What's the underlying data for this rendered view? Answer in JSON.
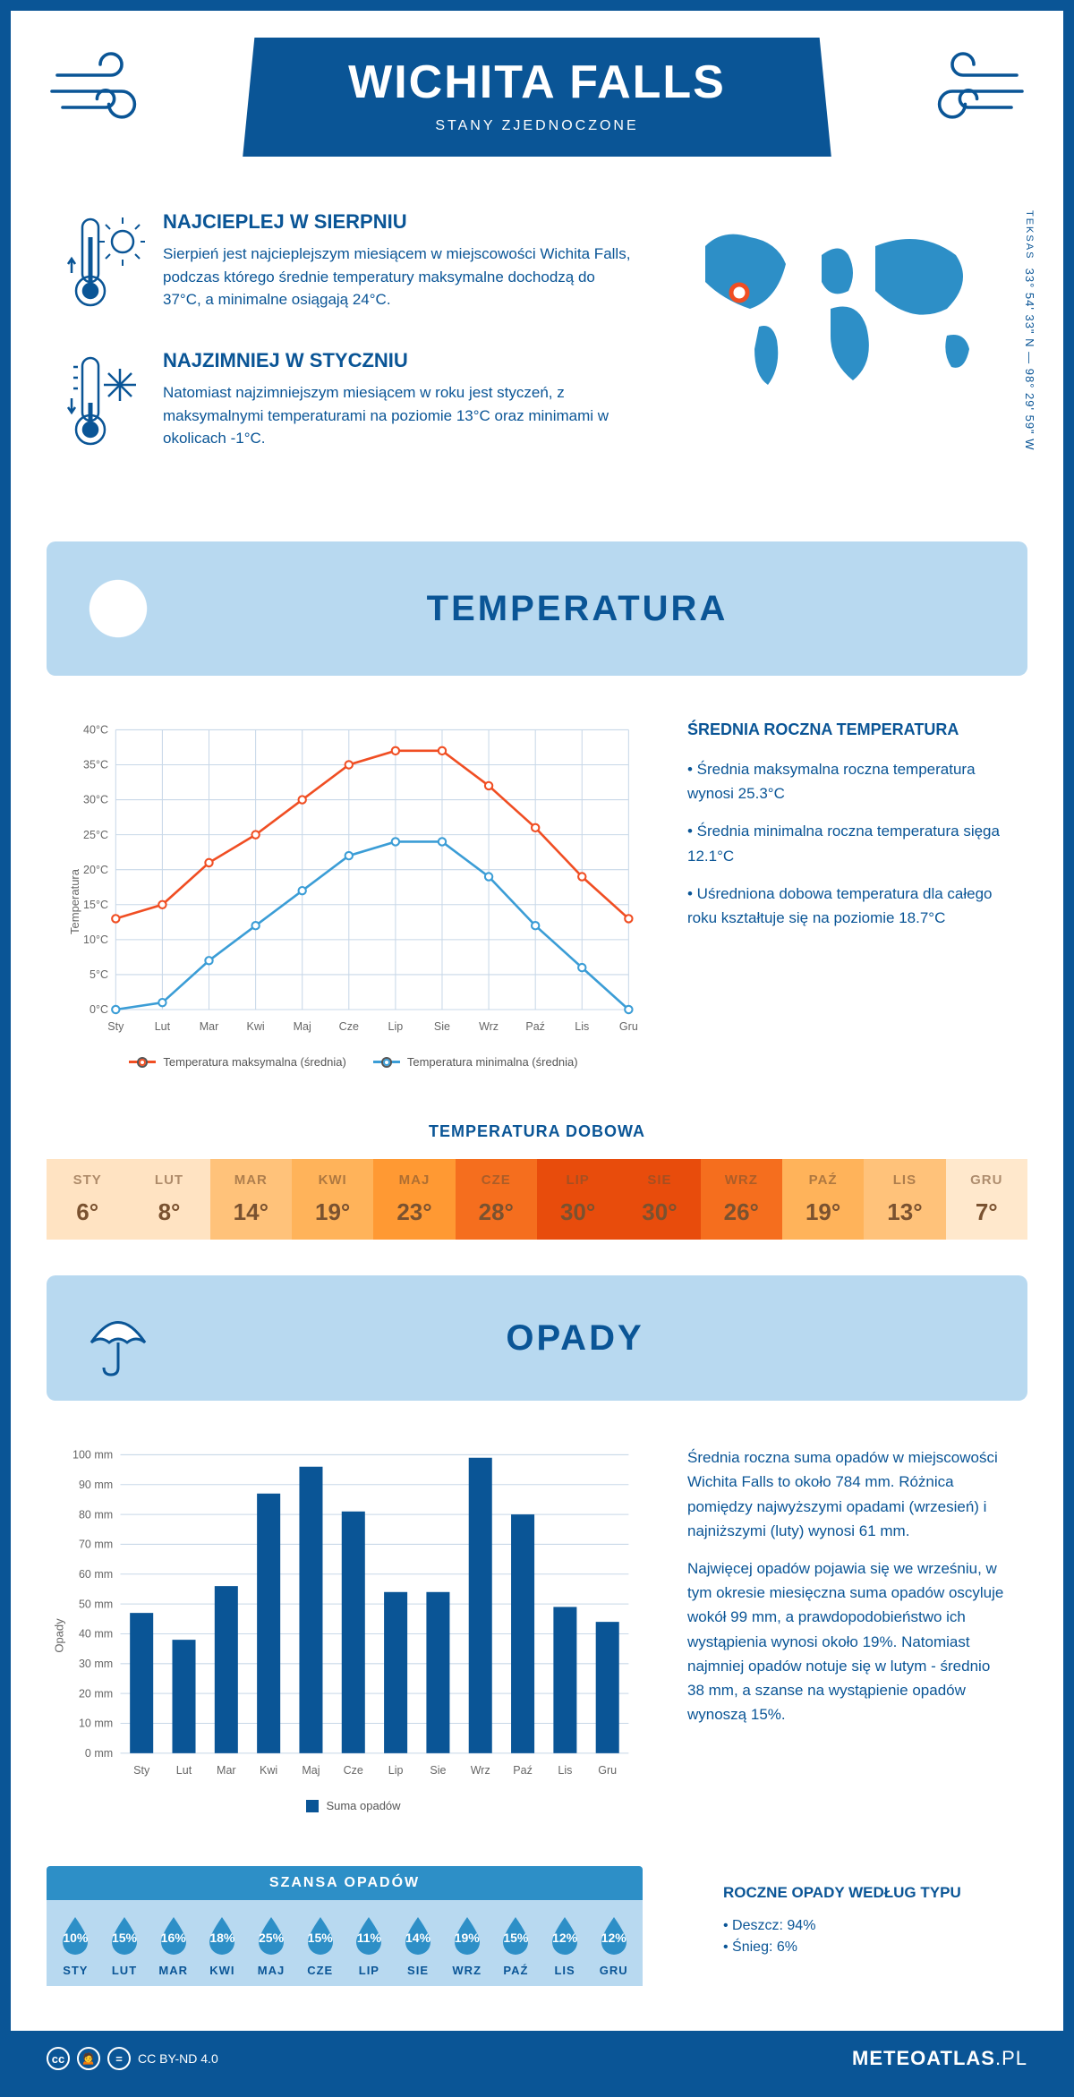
{
  "header": {
    "title": "WICHITA FALLS",
    "subtitle": "STANY ZJEDNOCZONE"
  },
  "intro": {
    "hot": {
      "title": "NAJCIEPLEJ W SIERPNIU",
      "text": "Sierpień jest najcieplejszym miesiącem w miejscowości Wichita Falls, podczas którego średnie temperatury maksymalne dochodzą do 37°C, a minimalne osiągają 24°C."
    },
    "cold": {
      "title": "NAJZIMNIEJ W STYCZNIU",
      "text": "Natomiast najzimniejszym miesiącem w roku jest styczeń, z maksymalnymi temperaturami na poziomie 13°C oraz minimami w okolicach -1°C."
    },
    "coords": "33° 54' 33\" N — 98° 29' 59\" W",
    "state": "TEKSAS"
  },
  "temperature": {
    "section_title": "TEMPERATURA",
    "chart": {
      "type": "line",
      "y_label": "Temperatura",
      "y_min": 0,
      "y_max": 40,
      "y_step": 5,
      "y_suffix": "°C",
      "months": [
        "Sty",
        "Lut",
        "Mar",
        "Kwi",
        "Maj",
        "Cze",
        "Lip",
        "Sie",
        "Wrz",
        "Paź",
        "Lis",
        "Gru"
      ],
      "max_series": {
        "label": "Temperatura maksymalna (średnia)",
        "color": "#f04e23",
        "values": [
          13,
          15,
          21,
          25,
          30,
          35,
          37,
          37,
          32,
          26,
          19,
          13
        ]
      },
      "min_series": {
        "label": "Temperatura minimalna (średnia)",
        "color": "#3b9dd6",
        "values": [
          0,
          1,
          7,
          12,
          17,
          22,
          24,
          24,
          19,
          12,
          6,
          0
        ]
      },
      "grid_color": "#c8d8e8",
      "axis_font": 12
    },
    "annual": {
      "title": "ŚREDNIA ROCZNA TEMPERATURA",
      "b1": "• Średnia maksymalna roczna temperatura wynosi 25.3°C",
      "b2": "• Średnia minimalna roczna temperatura sięga 12.1°C",
      "b3": "• Uśredniona dobowa temperatura dla całego roku kształtuje się na poziomie 18.7°C"
    },
    "daily": {
      "title": "TEMPERATURA DOBOWA",
      "months": [
        "STY",
        "LUT",
        "MAR",
        "KWI",
        "MAJ",
        "CZE",
        "LIP",
        "SIE",
        "WRZ",
        "PAŹ",
        "LIS",
        "GRU"
      ],
      "values": [
        "6°",
        "8°",
        "14°",
        "19°",
        "23°",
        "28°",
        "30°",
        "30°",
        "26°",
        "19°",
        "13°",
        "7°"
      ],
      "colors": [
        "#ffe3c2",
        "#ffe3c2",
        "#ffc27a",
        "#ffb35a",
        "#ff9933",
        "#f56e1e",
        "#e84c0c",
        "#e84c0c",
        "#f56e1e",
        "#ffb35a",
        "#ffc27a",
        "#ffe8cc"
      ],
      "text_color": "#7a5230"
    }
  },
  "precipitation": {
    "section_title": "OPADY",
    "chart": {
      "type": "bar",
      "y_label": "Opady",
      "y_min": 0,
      "y_max": 100,
      "y_step": 10,
      "y_suffix": " mm",
      "months": [
        "Sty",
        "Lut",
        "Mar",
        "Kwi",
        "Maj",
        "Cze",
        "Lip",
        "Sie",
        "Wrz",
        "Paź",
        "Lis",
        "Gru"
      ],
      "values": [
        47,
        38,
        56,
        87,
        96,
        81,
        54,
        54,
        99,
        80,
        49,
        44
      ],
      "bar_color": "#0a5596",
      "grid_color": "#c8d8e8",
      "legend": "Suma opadów"
    },
    "text1": "Średnia roczna suma opadów w miejscowości Wichita Falls to około 784 mm. Różnica pomiędzy najwyższymi opadami (wrzesień) i najniższymi (luty) wynosi 61 mm.",
    "text2": "Najwięcej opadów pojawia się we wrześniu, w tym okresie miesięczna suma opadów oscyluje wokół 99 mm, a prawdopodobieństwo ich wystąpienia wynosi około 19%. Natomiast najmniej opadów notuje się w lutym - średnio 38 mm, a szanse na wystąpienie opadów wynoszą 15%.",
    "chance": {
      "title": "SZANSA OPADÓW",
      "months": [
        "STY",
        "LUT",
        "MAR",
        "KWI",
        "MAJ",
        "CZE",
        "LIP",
        "SIE",
        "WRZ",
        "PAŹ",
        "LIS",
        "GRU"
      ],
      "values": [
        "10%",
        "15%",
        "16%",
        "18%",
        "25%",
        "15%",
        "11%",
        "14%",
        "19%",
        "15%",
        "12%",
        "12%"
      ],
      "drop_color": "#2d8fc7"
    },
    "by_type": {
      "title": "ROCZNE OPADY WEDŁUG TYPU",
      "rain": "• Deszcz: 94%",
      "snow": "• Śnieg: 6%"
    }
  },
  "footer": {
    "license": "CC BY-ND 4.0",
    "brand": "METEOATLAS",
    "tld": ".PL"
  }
}
